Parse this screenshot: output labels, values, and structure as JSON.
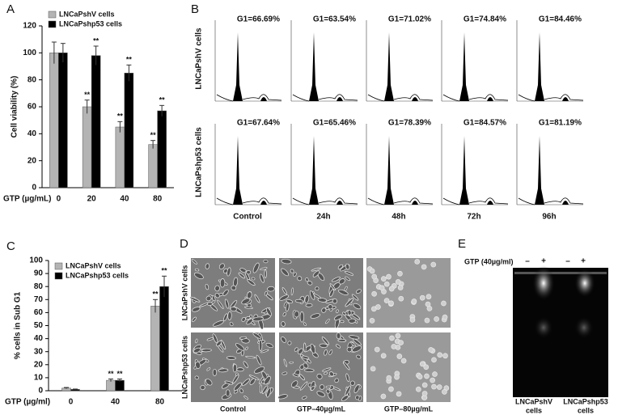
{
  "chart_data": [
    {
      "type": "bar",
      "panel_label": "A",
      "x_label": "GTP (µg/mL)",
      "y_label": "Cell viability (%)",
      "categories": [
        "0",
        "20",
        "40",
        "80"
      ],
      "series": [
        {
          "name": "LNCaPshV cells",
          "color": "#b4b4b4",
          "values": [
            100,
            60,
            45,
            32
          ],
          "errors": [
            8,
            5,
            4,
            3
          ],
          "significance": [
            null,
            "**",
            "**",
            "**"
          ]
        },
        {
          "name": "LNCaPshp53 cells",
          "color": "#000000",
          "values": [
            100,
            98,
            85,
            57
          ],
          "errors": [
            7,
            7,
            6,
            4
          ],
          "significance": [
            null,
            "**",
            "**",
            "**"
          ]
        }
      ],
      "ylim": [
        0,
        120
      ],
      "yticks": [
        0,
        20,
        40,
        60,
        80,
        100,
        120
      ],
      "legend": "upper left"
    },
    {
      "type": "bar",
      "panel_label": "C",
      "x_label": "GTP (µg/ml)",
      "y_label": "% cells in Sub G1",
      "categories": [
        "0",
        "40",
        "80"
      ],
      "series": [
        {
          "name": "LNCaPshV cells",
          "color": "#b4b4b4",
          "values": [
            2,
            8,
            65
          ],
          "errors": [
            0.5,
            1,
            5
          ],
          "significance": [
            null,
            "**",
            "**"
          ]
        },
        {
          "name": "LNCaPshp53 cells",
          "color": "#000000",
          "values": [
            1,
            8,
            80
          ],
          "errors": [
            0.3,
            1,
            8
          ],
          "significance": [
            null,
            "**",
            "**"
          ]
        }
      ],
      "ylim": [
        0,
        100
      ],
      "yticks": [
        0,
        10,
        20,
        30,
        40,
        50,
        60,
        70,
        80,
        90,
        100
      ],
      "legend": "upper left"
    }
  ],
  "flow_cytometry": {
    "panel_label": "B",
    "rows": [
      "LNCaPshV cells",
      "LNCaPshp53 cells"
    ],
    "columns": [
      "Control",
      "24h",
      "48h",
      "72h",
      "96h"
    ],
    "g1": [
      [
        "G1=66.69%",
        "G1=63.54%",
        "G1=71.02%",
        "G1=74.84%",
        "G1=84.46%"
      ],
      [
        "G1=67.64%",
        "G1=65.46%",
        "G1=78.39%",
        "G1=84.57%",
        "G1=81.19%"
      ]
    ]
  },
  "micrographs": {
    "panel_label": "D",
    "rows": [
      "LNCaPshV cells",
      "LNCaPshp53 cells"
    ],
    "columns": [
      "Control",
      "GTP–40µg/mL",
      "GTP–80µg/mL"
    ]
  },
  "gel": {
    "panel_label": "E",
    "treatment": "GTP (40µg/ml)",
    "lanes": [
      "–",
      "+",
      "–",
      "+"
    ],
    "samples": [
      [
        "LNCaPshV",
        "cells"
      ],
      [
        "LNCaPshp53",
        "cells"
      ]
    ]
  }
}
